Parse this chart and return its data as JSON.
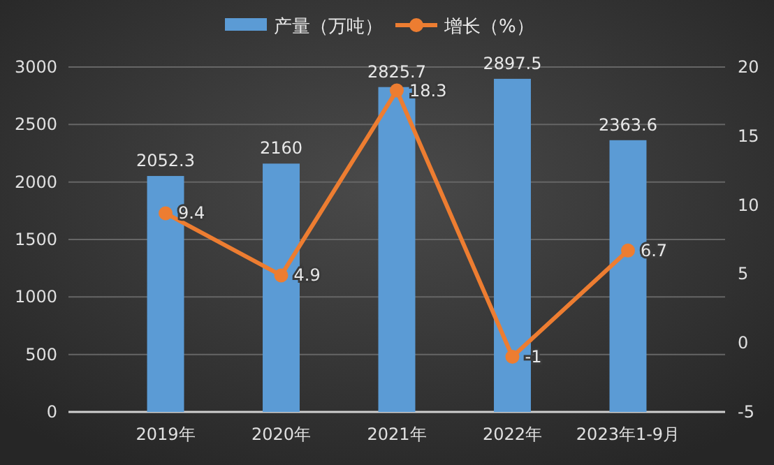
{
  "chart_data": {
    "type": "bar",
    "categories": [
      "2019年",
      "2020年",
      "2021年",
      "2022年",
      "2023年1-9月"
    ],
    "series": [
      {
        "name": "产量（万吨）",
        "color": "#5b9bd5",
        "values": [
          2052.3,
          2160,
          2825.7,
          2897.5,
          2363.6
        ]
      },
      {
        "name": "增长（%）",
        "type": "line",
        "axis": "y2",
        "color": "#ed7d31",
        "values": [
          9.4,
          4.9,
          18.3,
          -1,
          6.7
        ]
      }
    ],
    "ylim": [
      0,
      3000
    ],
    "yticks": [
      0,
      500,
      1000,
      1500,
      2000,
      2500,
      3000
    ],
    "y2lim": [
      -5,
      20
    ],
    "y2ticks": [
      -5,
      0,
      5,
      10,
      15,
      20
    ],
    "grid": "y",
    "legend": "top",
    "marker": "circle",
    "data_labels": true
  }
}
